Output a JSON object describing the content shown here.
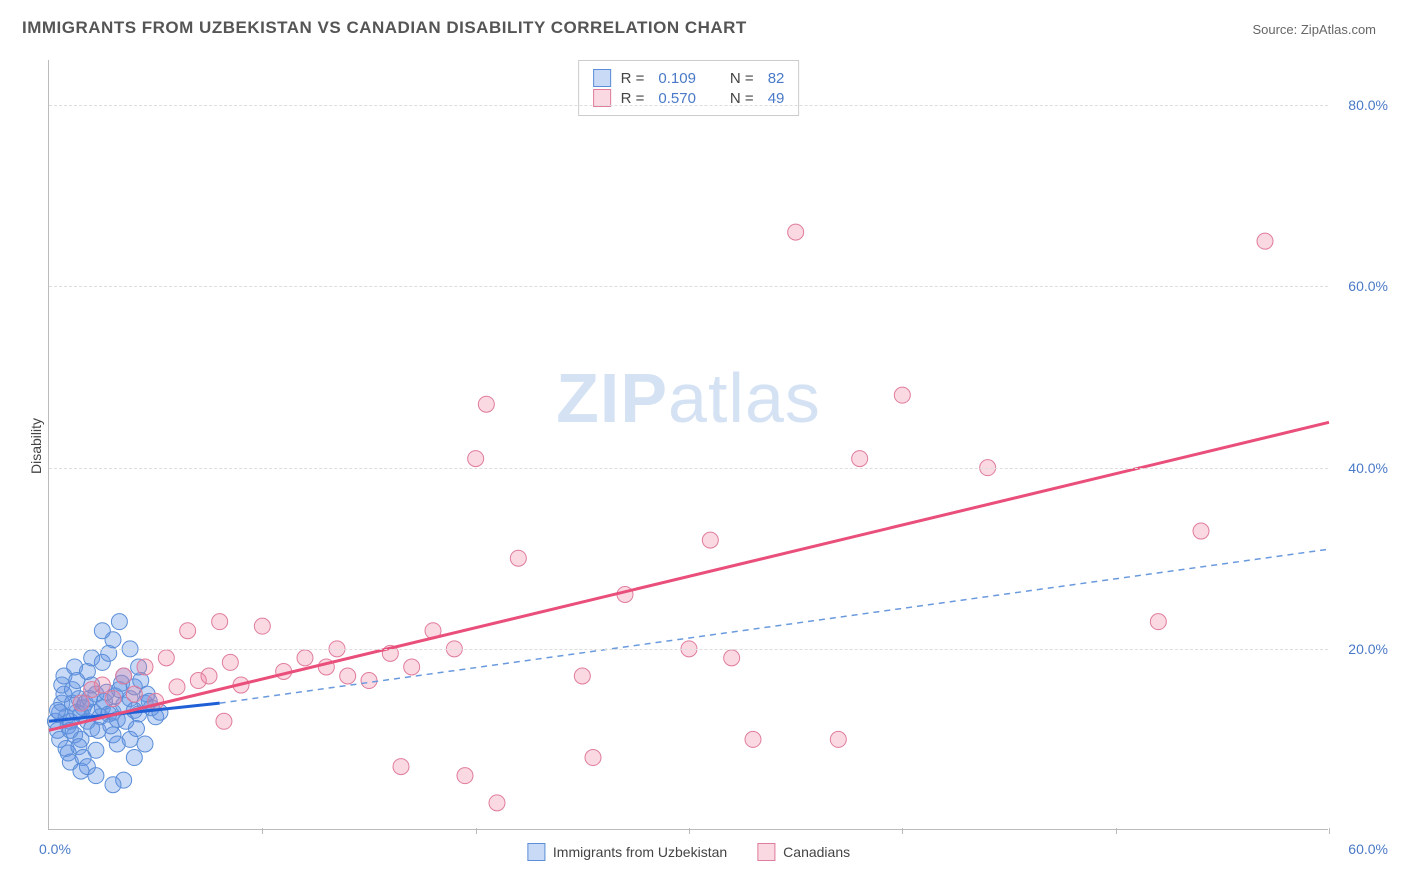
{
  "title": "IMMIGRANTS FROM UZBEKISTAN VS CANADIAN DISABILITY CORRELATION CHART",
  "source": "Source: ZipAtlas.com",
  "watermark_bold": "ZIP",
  "watermark_light": "atlas",
  "ylabel": "Disability",
  "xlim": [
    0,
    60
  ],
  "ylim": [
    0,
    85
  ],
  "xtick_labels": {
    "left": "0.0%",
    "right": "60.0%"
  },
  "ytick_positions": [
    20,
    40,
    60,
    80
  ],
  "ytick_labels": [
    "20.0%",
    "40.0%",
    "60.0%",
    "80.0%"
  ],
  "xtick_positions": [
    10,
    20,
    30,
    40,
    50,
    60
  ],
  "series": [
    {
      "name": "Immigrants from Uzbekistan",
      "fill": "rgba(100,150,230,0.35)",
      "stroke": "#5b8ed8",
      "trend_stroke": "#1e5fd6",
      "trend_width": 3,
      "trend_dash": "none",
      "trend": {
        "x1": 0,
        "y1": 12,
        "x2": 8,
        "y2": 14
      },
      "dashed_trend": {
        "x1": 8,
        "y1": 14,
        "x2": 60,
        "y2": 31,
        "stroke": "#6a9ade",
        "dash": "6,5",
        "width": 1.5
      },
      "R": "0.109",
      "N": "82",
      "points": [
        [
          0.3,
          12
        ],
        [
          0.5,
          13
        ],
        [
          0.4,
          11
        ],
        [
          0.6,
          14
        ],
        [
          0.8,
          12.5
        ],
        [
          0.5,
          10
        ],
        [
          0.7,
          15
        ],
        [
          0.9,
          11.5
        ],
        [
          0.4,
          13.2
        ],
        [
          1.0,
          12
        ],
        [
          1.1,
          14
        ],
        [
          1.2,
          10.5
        ],
        [
          0.6,
          16
        ],
        [
          0.8,
          9
        ],
        [
          1.3,
          13
        ],
        [
          1.0,
          11
        ],
        [
          1.4,
          14.5
        ],
        [
          1.5,
          12.8
        ],
        [
          0.7,
          17
        ],
        [
          0.9,
          8.5
        ],
        [
          1.6,
          13.5
        ],
        [
          1.1,
          15.5
        ],
        [
          1.8,
          12
        ],
        [
          1.7,
          14
        ],
        [
          2.0,
          11.2
        ],
        [
          1.3,
          16.5
        ],
        [
          1.5,
          10
        ],
        [
          2.1,
          13
        ],
        [
          2.2,
          15
        ],
        [
          2.4,
          12.5
        ],
        [
          1.0,
          7.5
        ],
        [
          1.2,
          18
        ],
        [
          1.4,
          9.2
        ],
        [
          1.9,
          14.5
        ],
        [
          2.5,
          13.5
        ],
        [
          2.0,
          16
        ],
        [
          2.3,
          11
        ],
        [
          2.6,
          14.2
        ],
        [
          1.6,
          8
        ],
        [
          1.8,
          17.5
        ],
        [
          2.8,
          12.8
        ],
        [
          2.7,
          15.2
        ],
        [
          3.0,
          13
        ],
        [
          2.9,
          11.5
        ],
        [
          3.1,
          14.8
        ],
        [
          1.5,
          6.5
        ],
        [
          2.0,
          19
        ],
        [
          2.2,
          8.8
        ],
        [
          3.2,
          12.2
        ],
        [
          3.3,
          15.5
        ],
        [
          3.5,
          13.8
        ],
        [
          3.0,
          10.5
        ],
        [
          3.4,
          16.2
        ],
        [
          1.8,
          7
        ],
        [
          2.5,
          18.5
        ],
        [
          3.6,
          12
        ],
        [
          3.8,
          14.5
        ],
        [
          3.2,
          9.5
        ],
        [
          4.0,
          13.2
        ],
        [
          3.5,
          17
        ],
        [
          2.2,
          6
        ],
        [
          2.8,
          19.5
        ],
        [
          4.2,
          12.8
        ],
        [
          4.0,
          15.8
        ],
        [
          4.5,
          14
        ],
        [
          3.8,
          10
        ],
        [
          3.0,
          21
        ],
        [
          2.5,
          22
        ],
        [
          3.5,
          5.5
        ],
        [
          4.3,
          16.5
        ],
        [
          4.1,
          11.2
        ],
        [
          4.8,
          13.5
        ],
        [
          3.3,
          23
        ],
        [
          4.0,
          8
        ],
        [
          4.6,
          15
        ],
        [
          3.8,
          20
        ],
        [
          4.5,
          9.5
        ],
        [
          5.0,
          12.5
        ],
        [
          3.0,
          5
        ],
        [
          4.2,
          18
        ],
        [
          4.7,
          14.2
        ],
        [
          5.2,
          13
        ]
      ]
    },
    {
      "name": "Canadians",
      "fill": "rgba(240,130,160,0.3)",
      "stroke": "#e07c9c",
      "trend_stroke": "#e94f7a",
      "trend_width": 3,
      "trend_dash": "none",
      "trend": {
        "x1": 0,
        "y1": 11,
        "x2": 60,
        "y2": 45
      },
      "R": "0.570",
      "N": "49",
      "points": [
        [
          1.5,
          14
        ],
        [
          2.0,
          15.5
        ],
        [
          2.5,
          16
        ],
        [
          3.0,
          14.5
        ],
        [
          3.5,
          17
        ],
        [
          4.0,
          15
        ],
        [
          4.5,
          18
        ],
        [
          5.0,
          14.2
        ],
        [
          5.5,
          19
        ],
        [
          6.0,
          15.8
        ],
        [
          6.5,
          22
        ],
        [
          7.0,
          16.5
        ],
        [
          7.5,
          17
        ],
        [
          8.0,
          23
        ],
        [
          8.5,
          18.5
        ],
        [
          9.0,
          16
        ],
        [
          10.0,
          22.5
        ],
        [
          11.0,
          17.5
        ],
        [
          12.0,
          19
        ],
        [
          13.0,
          18
        ],
        [
          14.0,
          17
        ],
        [
          15.0,
          16.5
        ],
        [
          16.0,
          19.5
        ],
        [
          17.0,
          18
        ],
        [
          18.0,
          22
        ],
        [
          19.0,
          20
        ],
        [
          20.0,
          41
        ],
        [
          20.5,
          47
        ],
        [
          21.0,
          3
        ],
        [
          22.0,
          30
        ],
        [
          25.0,
          17
        ],
        [
          27.0,
          26
        ],
        [
          30.0,
          20
        ],
        [
          31.0,
          32
        ],
        [
          32.0,
          19
        ],
        [
          33.0,
          10
        ],
        [
          35.0,
          66
        ],
        [
          37.0,
          10
        ],
        [
          38.0,
          41
        ],
        [
          40.0,
          48
        ],
        [
          44.0,
          40
        ],
        [
          52.0,
          23
        ],
        [
          54.0,
          33
        ],
        [
          57.0,
          65
        ],
        [
          16.5,
          7
        ],
        [
          19.5,
          6
        ],
        [
          25.5,
          8
        ],
        [
          13.5,
          20
        ],
        [
          8.2,
          12
        ]
      ]
    }
  ],
  "legend_top": [
    {
      "swatch_fill": "rgba(100,150,230,0.35)",
      "swatch_stroke": "#5b8ed8",
      "R_label": "R = ",
      "R": "0.109",
      "N_label": "N = ",
      "N": "82"
    },
    {
      "swatch_fill": "rgba(240,130,160,0.3)",
      "swatch_stroke": "#e07c9c",
      "R_label": "R = ",
      "R": "0.570",
      "N_label": "N = ",
      "N": "49"
    }
  ],
  "legend_bottom": [
    {
      "swatch_fill": "rgba(100,150,230,0.35)",
      "swatch_stroke": "#5b8ed8",
      "label": "Immigrants from Uzbekistan"
    },
    {
      "swatch_fill": "rgba(240,130,160,0.3)",
      "swatch_stroke": "#e07c9c",
      "label": "Canadians"
    }
  ],
  "marker_radius": 8,
  "title_fontsize": 17,
  "label_fontsize": 14,
  "tick_fontsize": 14,
  "background_color": "#ffffff",
  "grid_color": "#dddddd",
  "axis_color": "#bbbbbb"
}
